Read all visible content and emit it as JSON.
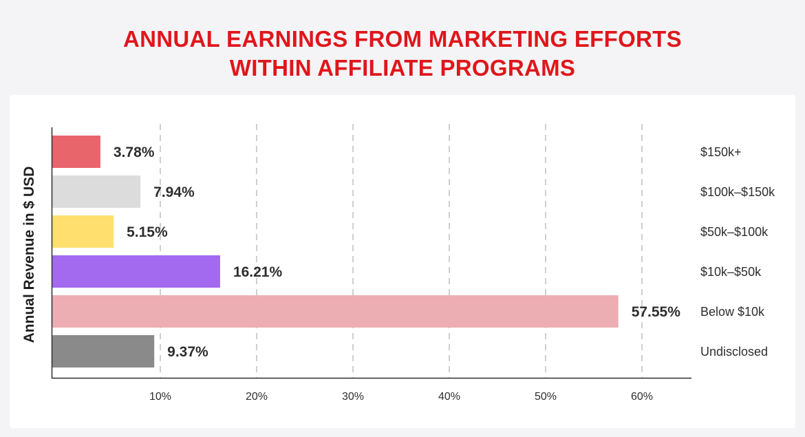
{
  "chart_data": {
    "type": "bar",
    "orientation": "horizontal",
    "title": "ANNUAL EARNINGS FROM MARKETING EFFORTS WITHIN AFFILIATE PROGRAMS",
    "title_lines": [
      "ANNUAL EARNINGS FROM MARKETING EFFORTS",
      "WITHIN AFFILIATE PROGRAMS"
    ],
    "ylabel": "Annual Revenue in $ USD",
    "xlabel": "",
    "xlim": [
      0,
      65
    ],
    "xticks": [
      10,
      20,
      30,
      40,
      50,
      60
    ],
    "xtick_labels": [
      "10%",
      "20%",
      "30%",
      "40%",
      "50%",
      "60%"
    ],
    "grid": "vertical-dashed",
    "categories": [
      "$150k+",
      "$100k–$150k",
      "$50k–$100k",
      "$10k–$50k",
      "Below $10k",
      "Undisclosed"
    ],
    "values": [
      3.78,
      7.94,
      5.15,
      16.21,
      57.55,
      9.37
    ],
    "value_labels": [
      "3.78%",
      "7.94%",
      "5.15%",
      "16.21%",
      "57.55%",
      "9.37%"
    ],
    "colors": [
      "#e8656c",
      "#dcdcdc",
      "#ffdf6e",
      "#a36af0",
      "#ecaeb2",
      "#8a8a8a"
    ]
  }
}
